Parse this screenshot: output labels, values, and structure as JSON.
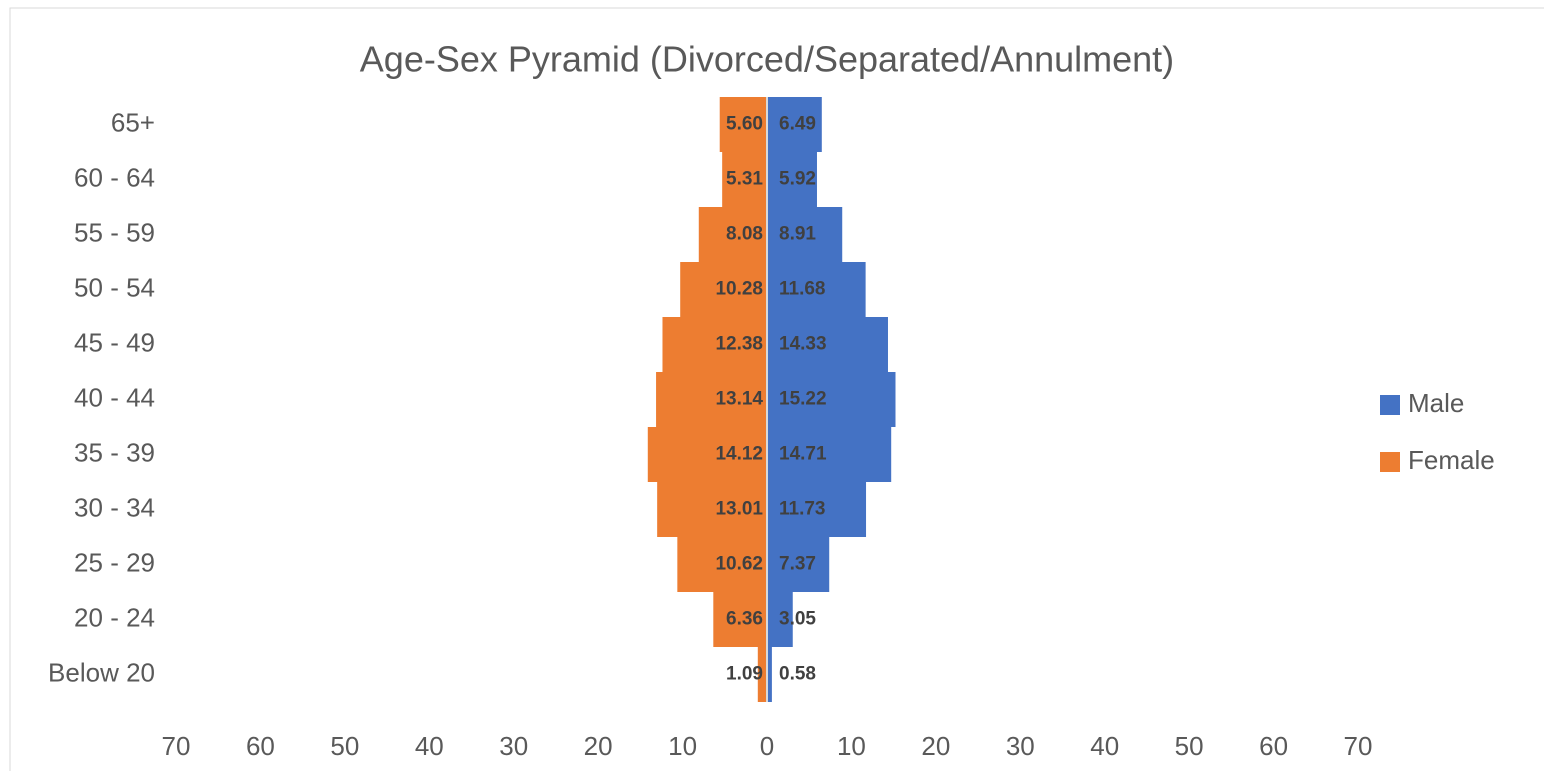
{
  "chart_data": {
    "type": "pyramid",
    "title": "Age-Sex Pyramid (Divorced/Separated/Annulment)",
    "categories": [
      "65+",
      "60 - 64",
      "55 - 59",
      "50 - 54",
      "45 - 49",
      "40 - 44",
      "35 - 39",
      "30 - 34",
      "25 - 29",
      "20 - 24",
      "Below 20"
    ],
    "series": [
      {
        "name": "Male",
        "color": "#4472c4",
        "values": [
          6.49,
          5.92,
          8.91,
          11.68,
          14.33,
          15.22,
          14.71,
          11.73,
          7.37,
          3.05,
          0.58
        ],
        "value_labels": [
          "6.49",
          "5.92",
          "8.91",
          "11.68",
          "14.33",
          "15.22",
          "14.71",
          "11.73",
          "7.37",
          "3.05",
          "0.58"
        ]
      },
      {
        "name": "Female",
        "color": "#ed7d31",
        "values": [
          -5.6,
          -5.31,
          -8.08,
          -10.28,
          -12.38,
          -13.14,
          -14.12,
          -13.01,
          -10.62,
          -6.36,
          -1.09
        ],
        "value_labels": [
          "5.60",
          "5.31",
          "8.08",
          "10.28",
          "12.38",
          "13.14",
          "14.12",
          "13.01",
          "10.62",
          "6.36",
          "1.09"
        ]
      }
    ],
    "xlim": [
      -70,
      70
    ],
    "xticks": [
      {
        "value": -70,
        "label": "70"
      },
      {
        "value": -60,
        "label": "60"
      },
      {
        "value": -50,
        "label": "50"
      },
      {
        "value": -40,
        "label": "40"
      },
      {
        "value": -30,
        "label": "30"
      },
      {
        "value": -20,
        "label": "20"
      },
      {
        "value": -10,
        "label": "10"
      },
      0,
      10,
      20,
      30,
      40,
      50,
      60,
      70
    ],
    "legend": "right"
  }
}
